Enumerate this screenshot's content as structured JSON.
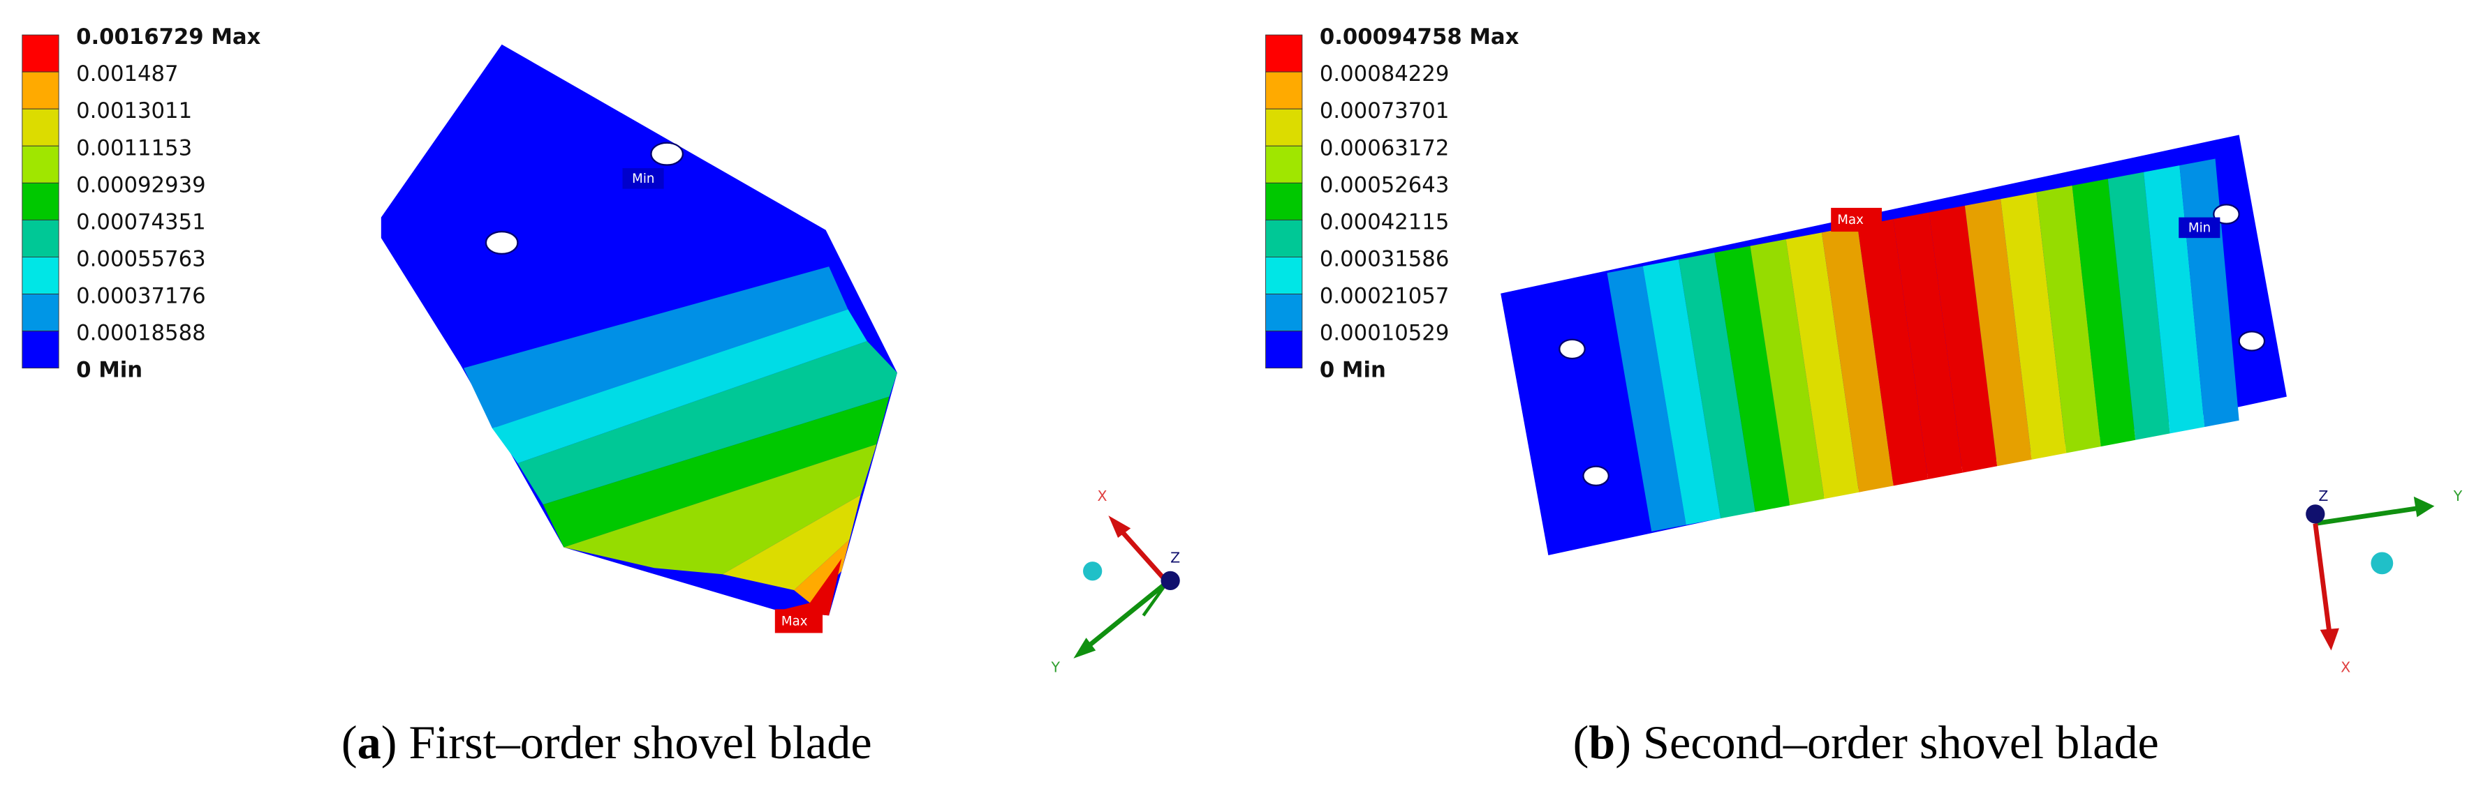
{
  "panels": [
    {
      "legend": [
        "0.0016729 Max",
        "0.001487",
        "0.0013011",
        "0.0011153",
        "0.00092939",
        "0.00074351",
        "0.00055763",
        "0.00037176",
        "0.00018588",
        "0 Min"
      ],
      "min_marker": "Min",
      "max_marker": "Max",
      "axis_labels": [
        "X",
        "Y",
        "Z"
      ],
      "caption": {
        "open": "(",
        "letter": "a",
        "text": ") First–order shovel blade"
      }
    },
    {
      "legend": [
        "0.00094758 Max",
        "0.00084229",
        "0.00073701",
        "0.00063172",
        "0.00052643",
        "0.00042115",
        "0.00031586",
        "0.00021057",
        "0.00010529",
        "0 Min"
      ],
      "min_marker": "Min",
      "max_marker": "Max",
      "axis_labels": [
        "X",
        "Y",
        "Z"
      ],
      "caption": {
        "open": "(",
        "letter": "b",
        "text": ") Second–order shovel blade"
      }
    }
  ]
}
